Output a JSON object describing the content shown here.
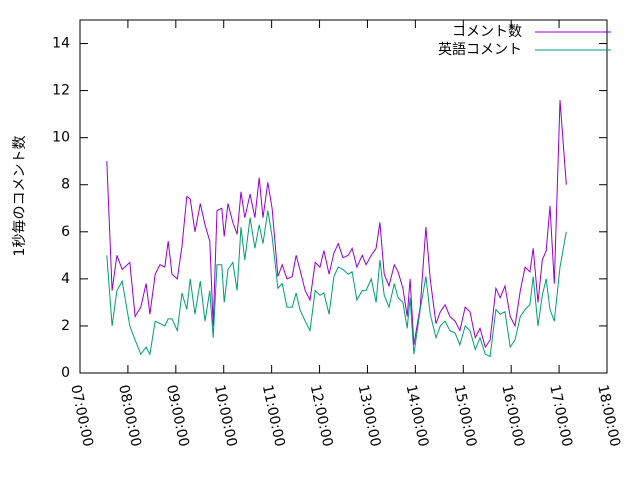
{
  "chart_data": {
    "type": "line",
    "y_label": "1秒毎のコメント数",
    "x": [
      7.56,
      7.67,
      7.77,
      7.88,
      8.04,
      8.15,
      8.27,
      8.38,
      8.46,
      8.57,
      8.67,
      8.77,
      8.84,
      8.92,
      9.03,
      9.13,
      9.23,
      9.3,
      9.4,
      9.51,
      9.61,
      9.71,
      9.78,
      9.86,
      9.96,
      10.01,
      10.09,
      10.19,
      10.28,
      10.36,
      10.44,
      10.55,
      10.65,
      10.74,
      10.82,
      10.92,
      11.01,
      11.13,
      11.22,
      11.32,
      11.43,
      11.51,
      11.59,
      11.7,
      11.8,
      11.91,
      12.01,
      12.09,
      12.2,
      12.3,
      12.39,
      12.49,
      12.6,
      12.68,
      12.78,
      12.89,
      12.97,
      13.08,
      13.18,
      13.26,
      13.35,
      13.45,
      13.56,
      13.64,
      13.74,
      13.83,
      13.89,
      13.97,
      14.1,
      14.22,
      14.31,
      14.43,
      14.52,
      14.62,
      14.72,
      14.83,
      14.93,
      15.04,
      15.14,
      15.25,
      15.35,
      15.46,
      15.56,
      15.68,
      15.77,
      15.87,
      15.98,
      16.08,
      16.19,
      16.29,
      16.39,
      16.46,
      16.56,
      16.65,
      16.73,
      16.81,
      16.9,
      17.02,
      17.15
    ],
    "series": [
      {
        "name": "コメント数",
        "color": "#9400d3",
        "values": [
          9.0,
          3.5,
          5.0,
          4.4,
          4.7,
          2.4,
          2.8,
          3.8,
          2.5,
          4.2,
          4.6,
          4.5,
          5.6,
          4.2,
          4.0,
          5.4,
          7.5,
          7.4,
          6.0,
          7.2,
          6.3,
          5.6,
          2.0,
          6.9,
          7.0,
          5.8,
          7.2,
          6.4,
          5.9,
          7.7,
          6.6,
          7.6,
          6.6,
          8.3,
          6.6,
          8.1,
          7.0,
          4.1,
          4.6,
          4.0,
          4.1,
          5.0,
          4.4,
          3.5,
          3.1,
          4.7,
          4.5,
          5.2,
          4.2,
          5.1,
          5.5,
          4.9,
          5.0,
          5.3,
          4.5,
          5.0,
          4.6,
          5.0,
          5.3,
          6.4,
          4.2,
          3.7,
          4.6,
          4.3,
          3.6,
          2.4,
          4.0,
          1.2,
          2.8,
          6.2,
          4.0,
          2.1,
          2.6,
          2.9,
          2.4,
          2.2,
          1.8,
          2.8,
          2.6,
          1.5,
          1.9,
          1.1,
          1.4,
          3.6,
          3.2,
          3.7,
          2.4,
          2.0,
          3.5,
          4.5,
          4.3,
          5.3,
          3.0,
          4.8,
          5.2,
          7.1,
          3.8,
          11.6,
          8.0
        ]
      },
      {
        "name": "英語コメント",
        "color": "#009e73",
        "values": [
          5.0,
          2.0,
          3.5,
          3.9,
          2.0,
          1.4,
          0.8,
          1.1,
          0.8,
          2.2,
          2.1,
          2.0,
          2.3,
          2.3,
          1.8,
          3.4,
          2.7,
          4.0,
          2.5,
          3.9,
          2.2,
          3.5,
          1.5,
          4.6,
          4.6,
          3.0,
          4.4,
          4.7,
          3.5,
          6.2,
          4.8,
          6.6,
          5.3,
          6.3,
          5.5,
          6.9,
          5.8,
          3.6,
          3.8,
          2.8,
          2.8,
          3.4,
          2.7,
          2.2,
          1.8,
          3.5,
          3.3,
          3.4,
          2.5,
          4.1,
          4.5,
          4.4,
          4.2,
          4.3,
          3.1,
          3.5,
          3.5,
          4.0,
          3.0,
          4.8,
          3.3,
          2.8,
          3.8,
          3.2,
          3.0,
          1.9,
          3.2,
          0.8,
          2.7,
          4.1,
          2.5,
          1.5,
          2.0,
          2.2,
          1.8,
          1.7,
          1.2,
          2.0,
          1.8,
          1.0,
          1.5,
          0.8,
          0.7,
          2.7,
          2.5,
          2.6,
          1.1,
          1.4,
          2.4,
          2.7,
          2.9,
          4.1,
          2.0,
          3.3,
          4.0,
          2.7,
          2.2,
          4.5,
          6.0
        ]
      }
    ],
    "xlim": [
      7,
      18
    ],
    "xticks": [
      {
        "value": 7,
        "label": "07:00:00"
      },
      {
        "value": 8,
        "label": "08:00:00"
      },
      {
        "value": 9,
        "label": "09:00:00"
      },
      {
        "value": 10,
        "label": "10:00:00"
      },
      {
        "value": 11,
        "label": "11:00:00"
      },
      {
        "value": 12,
        "label": "12:00:00"
      },
      {
        "value": 13,
        "label": "13:00:00"
      },
      {
        "value": 14,
        "label": "14:00:00"
      },
      {
        "value": 15,
        "label": "15:00:00"
      },
      {
        "value": 16,
        "label": "16:00:00"
      },
      {
        "value": 17,
        "label": "17:00:00"
      },
      {
        "value": 18,
        "label": "18:00:00"
      }
    ],
    "ylim": [
      0,
      15
    ],
    "yticks": [
      0,
      2,
      4,
      6,
      8,
      10,
      12,
      14
    ],
    "grid": false,
    "legend": "top-right"
  }
}
